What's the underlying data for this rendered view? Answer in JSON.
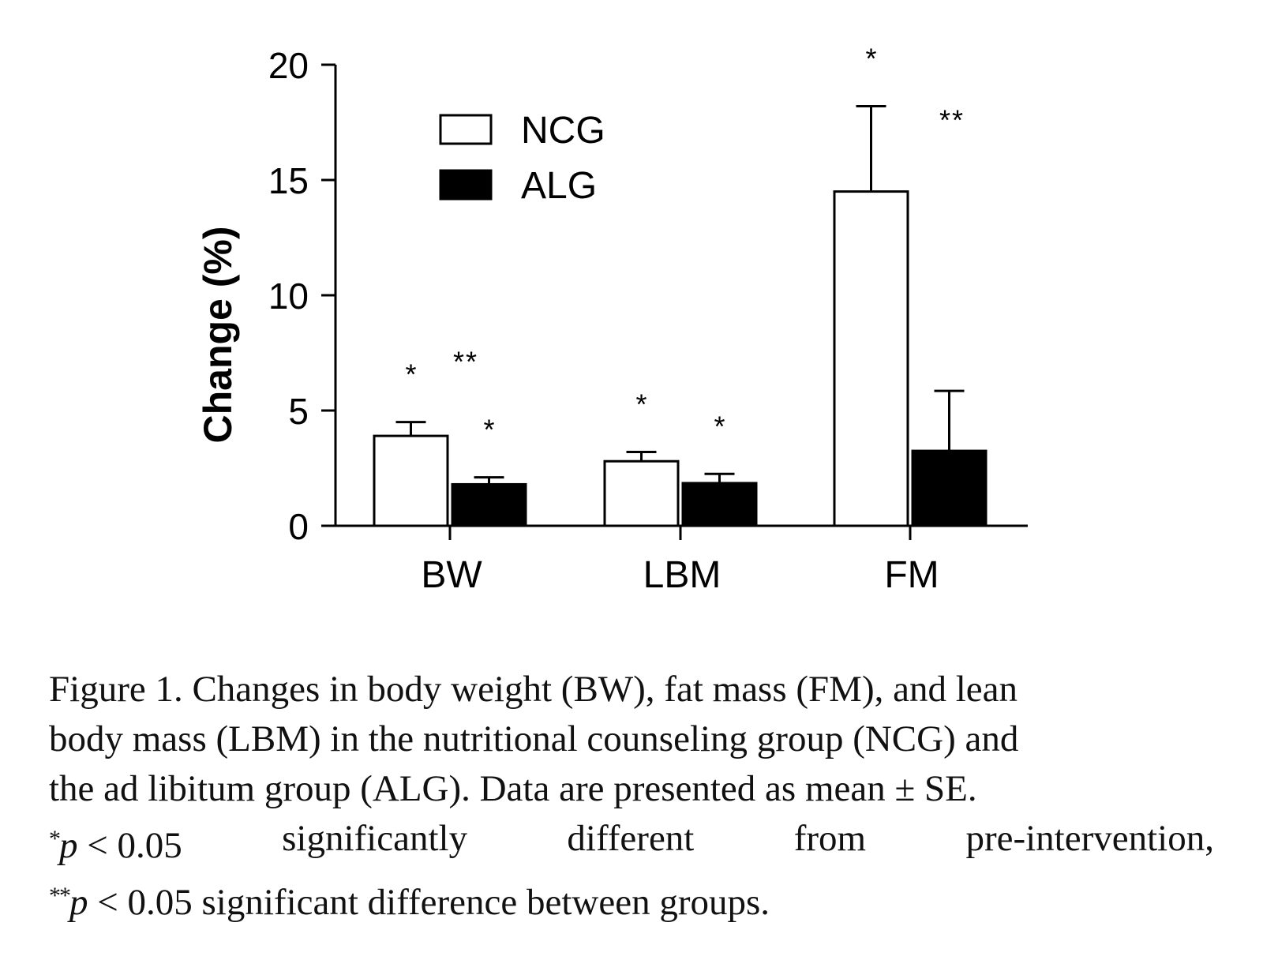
{
  "chart_data": {
    "type": "bar",
    "ylabel": "Change (%)",
    "xlabel": "",
    "ylim": [
      0,
      20
    ],
    "yticks": [
      0,
      5,
      10,
      15,
      20
    ],
    "categories": [
      "BW",
      "LBM",
      "FM"
    ],
    "series": [
      {
        "name": "NCG",
        "fill": "#ffffff",
        "values": [
          3.9,
          2.8,
          14.5
        ],
        "errors": [
          0.6,
          0.4,
          3.7
        ],
        "annotations": [
          "*",
          "*",
          "*"
        ]
      },
      {
        "name": "ALG",
        "fill": "#000000",
        "values": [
          1.8,
          1.85,
          3.25
        ],
        "errors": [
          0.3,
          0.4,
          2.6
        ],
        "annotations": [
          "*",
          "*",
          ""
        ]
      }
    ],
    "between_group_annotations": [
      "**",
      "",
      "**"
    ],
    "legend": {
      "position": "top-left",
      "entries": [
        "NCG",
        "ALG"
      ]
    }
  },
  "caption": {
    "line1": "Figure 1.  Changes in body weight (BW), fat mass (FM), and lean",
    "line2": "body mass (LBM) in the nutritional counseling group (NCG) and",
    "line3": "the ad libitum group (ALG). Data are presented as mean ± SE.",
    "l4_star": "*",
    "l4_p": "p",
    "l4_cond": " < 0.05",
    "l4_w1": "significantly",
    "l4_w2": "different",
    "l4_w3": "from",
    "l4_w4": "pre-intervention,",
    "l5_star": "**",
    "l5_p": "p",
    "l5_rest": " < 0.05 significant difference between groups."
  }
}
